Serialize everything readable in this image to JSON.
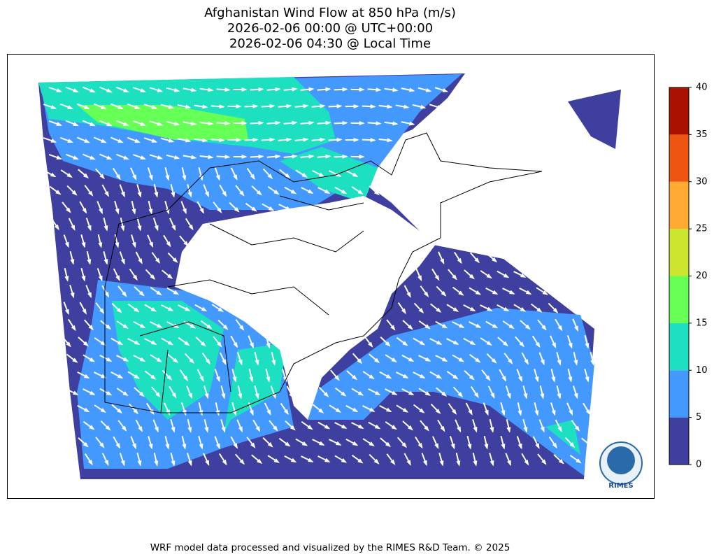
{
  "title": [
    "Afghanistan Wind Flow at 850 hPa (m/s)",
    "2026-02-06 00:00 @ UTC+00:00",
    "2026-02-06 04:30 @ Local Time"
  ],
  "colorbar": {
    "ticks": [
      0,
      5,
      10,
      15,
      20,
      25,
      30,
      35,
      40
    ],
    "colors": [
      "#3f3f9f",
      "#4499ff",
      "#1de0c0",
      "#66ff55",
      "#cce52e",
      "#ffaa33",
      "#ee5511",
      "#aa1100"
    ]
  },
  "logo": "RIMES",
  "footer": "WRF model data processed and visualized by the RIMES R&D Team. © 2025"
}
